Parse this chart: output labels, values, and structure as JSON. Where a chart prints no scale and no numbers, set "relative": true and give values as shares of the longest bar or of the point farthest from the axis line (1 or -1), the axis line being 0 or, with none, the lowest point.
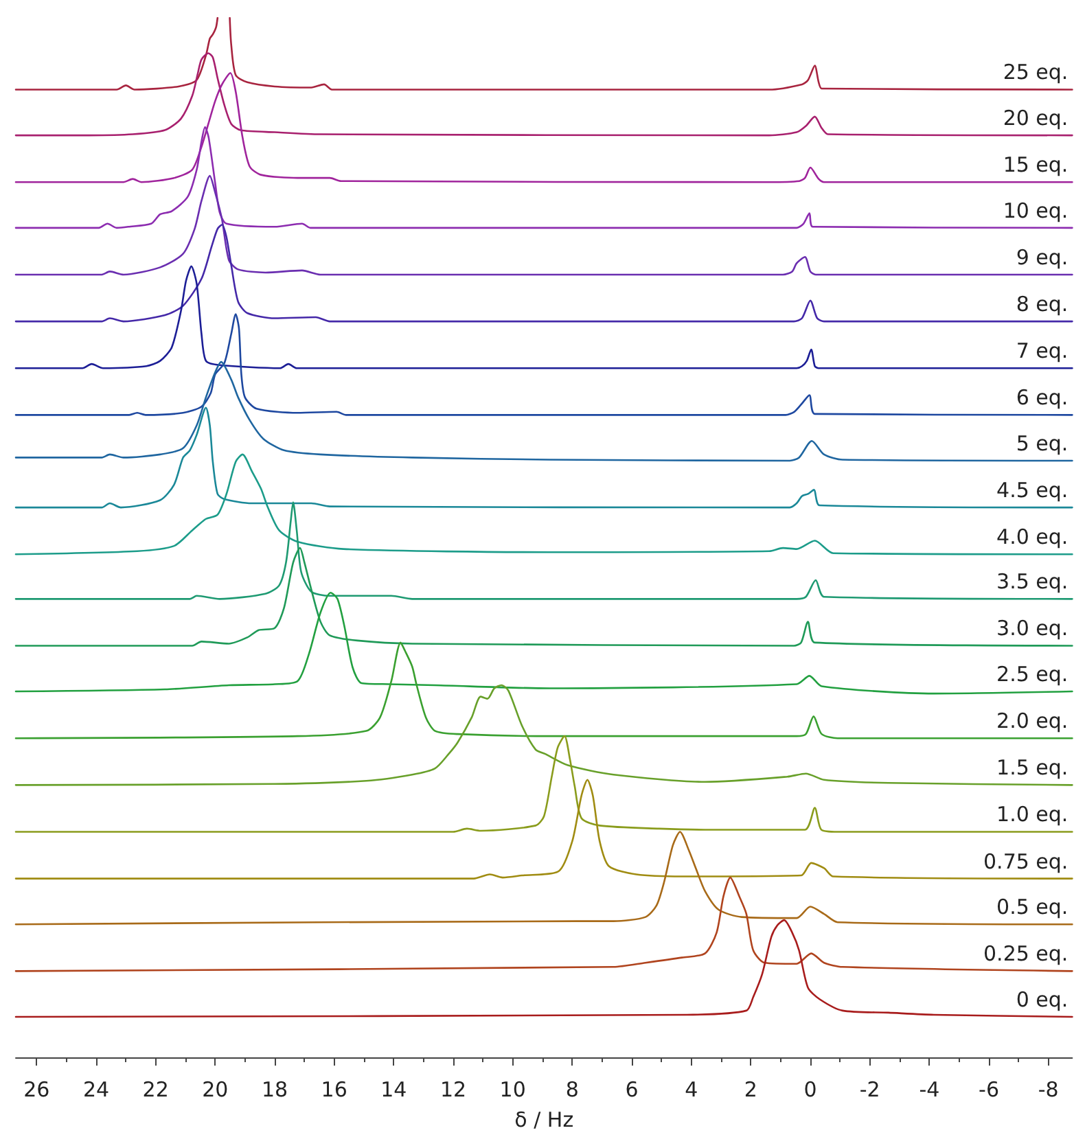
{
  "chart_data": {
    "type": "line",
    "relative": true,
    "xlabel": "δ / Hz",
    "xlim": [
      26.7,
      -8.8
    ],
    "xticks": [
      26,
      {
        "value": 25,
        "label": null
      },
      24,
      {
        "value": 23,
        "label": null
      },
      22,
      {
        "value": 21,
        "label": null
      },
      20,
      {
        "value": 19,
        "label": null
      },
      18,
      {
        "value": 17,
        "label": null
      },
      16,
      {
        "value": 15,
        "label": null
      },
      14,
      {
        "value": 13,
        "label": null
      },
      12,
      {
        "value": 11,
        "label": null
      },
      10,
      {
        "value": 9,
        "label": null
      },
      8,
      {
        "value": 7,
        "label": null
      },
      6,
      {
        "value": 5,
        "label": null
      },
      4,
      {
        "value": 3,
        "label": null
      },
      2,
      {
        "value": 1,
        "label": null
      },
      0,
      {
        "value": -1,
        "label": null
      },
      -2,
      {
        "value": -3,
        "label": null
      },
      -4,
      {
        "value": -5,
        "label": null
      },
      -6,
      {
        "value": -7,
        "label": null
      },
      -8
    ],
    "marker": "none",
    "line_style": "solid",
    "series": [
      {
        "name": "25 eq.",
        "color": "#a8243f",
        "x": [
          26.7,
          23.31,
          23.0,
          22.71,
          21.23,
          20.63,
          20.31,
          20.18,
          20.08,
          19.97,
          19.92,
          19.72,
          19.51,
          19.46,
          19.31,
          18.92,
          18.0,
          16.77,
          16.34,
          16.08,
          1.38,
          0.28,
          0.08,
          -0.15,
          -0.28,
          -0.38,
          -8.8
        ],
        "values": [
          0.931,
          0.931,
          0.935,
          0.931,
          0.934,
          0.94,
          0.964,
          0.98,
          0.984,
          0.991,
          1,
          null,
          1,
          0.974,
          0.945,
          0.938,
          0.934,
          0.933,
          0.936,
          0.931,
          0.931,
          0.936,
          0.94,
          0.954,
          0.938,
          0.932,
          0.931
        ]
      },
      {
        "name": "20 eq.",
        "color": "#a8206e",
        "x": [
          26.7,
          24.23,
          22.77,
          21.69,
          21.15,
          20.77,
          20.58,
          20.46,
          20.23,
          20.08,
          19.92,
          19.69,
          19.46,
          19.15,
          18.0,
          16.46,
          1.38,
          0.46,
          0.15,
          -0.15,
          -0.38,
          -0.59,
          -8.8
        ],
        "values": [
          0.887,
          0.887,
          0.888,
          0.892,
          0.903,
          0.925,
          0.947,
          0.96,
          0.966,
          0.962,
          0.942,
          0.916,
          0.898,
          0.892,
          0.89,
          0.888,
          0.887,
          0.89,
          0.896,
          0.905,
          0.894,
          0.888,
          0.887
        ]
      },
      {
        "name": "15 eq.",
        "color": "#a0249c",
        "x": [
          26.7,
          23.08,
          22.77,
          22.48,
          21.38,
          20.77,
          20.46,
          20.23,
          20.0,
          19.77,
          19.49,
          19.31,
          19.08,
          18.84,
          18.46,
          17.23,
          16.15,
          15.77,
          1.38,
          0.37,
          0.18,
          0.0,
          -0.28,
          -0.46,
          -8.8
        ],
        "values": [
          0.842,
          0.842,
          0.845,
          0.842,
          0.846,
          0.854,
          0.876,
          0.898,
          0.92,
          0.936,
          0.947,
          0.929,
          0.885,
          0.857,
          0.849,
          0.846,
          0.846,
          0.843,
          0.842,
          0.843,
          0.846,
          0.856,
          0.845,
          0.842,
          0.842
        ]
      },
      {
        "name": "10 eq.",
        "color": "#8c2cb0",
        "x": [
          26.7,
          23.91,
          23.62,
          23.31,
          22.92,
          22.15,
          21.85,
          21.46,
          20.92,
          20.62,
          20.46,
          20.34,
          20.22,
          20.0,
          19.85,
          19.62,
          18.0,
          17.08,
          16.8,
          0.46,
          0.23,
          0.03,
          -0.08,
          -8.8
        ],
        "values": [
          0.798,
          0.798,
          0.802,
          0.798,
          0.799,
          0.802,
          0.811,
          0.814,
          0.828,
          0.854,
          0.881,
          0.895,
          0.885,
          0.841,
          0.813,
          0.802,
          0.799,
          0.802,
          0.798,
          0.798,
          0.802,
          0.812,
          0.799,
          0.798
        ]
      },
      {
        "name": "9 eq.",
        "color": "#6a2eb0",
        "x": [
          26.7,
          23.81,
          23.54,
          23.08,
          21.85,
          21.08,
          20.69,
          20.46,
          20.18,
          20.0,
          19.77,
          19.54,
          19.23,
          18.31,
          17.08,
          16.46,
          0.92,
          0.61,
          0.46,
          0.18,
          0.0,
          -0.18,
          -8.8
        ],
        "values": [
          0.753,
          0.753,
          0.756,
          0.753,
          0.76,
          0.773,
          0.797,
          0.824,
          0.848,
          0.832,
          0.806,
          0.767,
          0.758,
          0.755,
          0.757,
          0.753,
          0.753,
          0.756,
          0.764,
          0.77,
          0.756,
          0.753,
          0.753
        ]
      },
      {
        "name": "8 eq.",
        "color": "#4428a8",
        "x": [
          26.7,
          23.81,
          23.54,
          23.08,
          21.69,
          21.08,
          20.46,
          20.12,
          19.92,
          19.77,
          19.62,
          19.46,
          19.23,
          18.92,
          18.0,
          16.62,
          16.15,
          0.55,
          0.28,
          0.0,
          -0.23,
          -0.46,
          -8.8
        ],
        "values": [
          0.708,
          0.708,
          0.711,
          0.708,
          0.714,
          0.723,
          0.749,
          0.78,
          0.797,
          0.801,
          0.789,
          0.762,
          0.727,
          0.716,
          0.711,
          0.712,
          0.708,
          0.708,
          0.711,
          0.728,
          0.711,
          0.708,
          0.708
        ]
      },
      {
        "name": "7 eq.",
        "color": "#1c1e96",
        "x": [
          26.7,
          24.46,
          24.15,
          23.77,
          22.31,
          21.85,
          21.46,
          21.15,
          20.98,
          20.8,
          20.62,
          20.46,
          20.31,
          19.85,
          17.82,
          17.54,
          17.26,
          0.46,
          0.28,
          0.12,
          -0.03,
          -0.15,
          -0.28,
          -8.8
        ],
        "values": [
          0.663,
          0.663,
          0.667,
          0.663,
          0.665,
          0.67,
          0.683,
          0.718,
          0.747,
          0.761,
          0.744,
          0.696,
          0.67,
          0.666,
          0.663,
          0.667,
          0.663,
          0.663,
          0.665,
          0.67,
          0.681,
          0.665,
          0.663,
          0.663
        ]
      },
      {
        "name": "6 eq.",
        "color": "#1e48a0",
        "x": [
          26.7,
          22.89,
          22.62,
          22.34,
          21.08,
          20.46,
          20.15,
          20.0,
          19.69,
          19.46,
          19.31,
          19.2,
          19.12,
          19.0,
          18.61,
          17.23,
          15.92,
          15.6,
          0.83,
          0.54,
          0.31,
          0.03,
          -0.15,
          -8.8
        ],
        "values": [
          0.618,
          0.618,
          0.62,
          0.618,
          0.62,
          0.626,
          0.639,
          0.657,
          0.668,
          0.696,
          0.715,
          0.701,
          0.657,
          0.635,
          0.624,
          0.62,
          0.621,
          0.618,
          0.618,
          0.621,
          0.628,
          0.637,
          0.619,
          0.618
        ]
      },
      {
        "name": "5 eq.",
        "color": "#1f66a0",
        "x": [
          26.7,
          23.81,
          23.54,
          23.08,
          21.85,
          21.08,
          20.62,
          20.31,
          20.0,
          19.8,
          19.46,
          19.23,
          18.84,
          18.38,
          17.69,
          16.46,
          13.38,
          8.77,
          0.69,
          0.38,
          -0.05,
          -0.46,
          -1.08,
          -8.8
        ],
        "values": [
          0.577,
          0.577,
          0.58,
          0.577,
          0.58,
          0.586,
          0.608,
          0.635,
          0.659,
          0.669,
          0.652,
          0.635,
          0.613,
          0.595,
          0.584,
          0.58,
          0.577,
          0.575,
          0.574,
          0.577,
          0.593,
          0.58,
          0.575,
          0.574
        ]
      },
      {
        "name": "4.5 eq.",
        "color": "#1a8898",
        "x": [
          26.7,
          23.81,
          23.54,
          23.17,
          21.85,
          21.38,
          21.08,
          20.85,
          20.62,
          20.31,
          20.18,
          20.08,
          19.92,
          19.69,
          18.77,
          16.77,
          16.15,
          0.69,
          0.46,
          0.28,
          0.08,
          -0.12,
          -0.31,
          -8.8
        ],
        "values": [
          0.529,
          0.529,
          0.533,
          0.529,
          0.536,
          0.551,
          0.577,
          0.584,
          0.599,
          0.625,
          0.608,
          0.573,
          0.542,
          0.537,
          0.533,
          0.533,
          0.53,
          0.529,
          0.533,
          0.54,
          0.542,
          0.546,
          0.531,
          0.529
        ]
      },
      {
        "name": "4.0 eq.",
        "color": "#1c9c8a",
        "x": [
          26.7,
          22.62,
          21.38,
          20.77,
          20.31,
          19.92,
          19.62,
          19.31,
          19.08,
          18.77,
          18.46,
          18.23,
          17.85,
          17.23,
          15.69,
          8.77,
          1.38,
          0.92,
          0.46,
          -0.15,
          -0.77,
          -8.8
        ],
        "values": [
          0.484,
          0.487,
          0.492,
          0.507,
          0.518,
          0.522,
          0.542,
          0.573,
          0.58,
          0.564,
          0.547,
          0.529,
          0.507,
          0.496,
          0.489,
          0.486,
          0.487,
          0.49,
          0.489,
          0.497,
          0.485,
          0.484
        ]
      },
      {
        "name": "3.5 eq.",
        "color": "#1e9a72",
        "x": [
          26.7,
          20.85,
          20.62,
          19.85,
          18.31,
          17.85,
          17.62,
          17.46,
          17.38,
          17.26,
          17.11,
          16.77,
          16.15,
          14.08,
          13.38,
          0.46,
          0.15,
          -0.18,
          -0.46,
          -8.8
        ],
        "values": [
          0.441,
          0.441,
          0.444,
          0.441,
          0.446,
          0.454,
          0.476,
          0.516,
          0.534,
          0.507,
          0.467,
          0.448,
          0.444,
          0.444,
          0.441,
          0.441,
          0.443,
          0.459,
          0.443,
          0.441
        ]
      },
      {
        "name": "3.0 eq.",
        "color": "#1f9a58",
        "x": [
          26.7,
          20.77,
          20.46,
          19.54,
          18.92,
          18.54,
          18.0,
          17.69,
          17.38,
          17.15,
          17.0,
          16.77,
          16.46,
          16.15,
          15.23,
          13.38,
          0.55,
          0.31,
          0.08,
          -0.15,
          -8.8
        ],
        "values": [
          0.396,
          0.396,
          0.4,
          0.398,
          0.404,
          0.411,
          0.413,
          0.432,
          0.476,
          0.49,
          0.476,
          0.45,
          0.419,
          0.406,
          0.401,
          0.398,
          0.396,
          0.399,
          0.419,
          0.399,
          0.396
        ]
      },
      {
        "name": "2.5 eq.",
        "color": "#22a040",
        "x": [
          26.7,
          21.69,
          19.54,
          18.0,
          17.23,
          16.85,
          16.46,
          16.12,
          15.89,
          15.66,
          15.38,
          15.08,
          14.15,
          12.61,
          8.77,
          0.46,
          0.03,
          -0.38,
          -4.15,
          -8.8
        ],
        "values": [
          0.352,
          0.354,
          0.358,
          0.359,
          0.362,
          0.388,
          0.428,
          0.447,
          0.441,
          0.415,
          0.375,
          0.36,
          0.359,
          0.358,
          0.355,
          0.359,
          0.367,
          0.357,
          0.35,
          0.352
        ]
      },
      {
        "name": "2.0 eq.",
        "color": "#3aa030",
        "x": [
          26.7,
          17.23,
          14.92,
          14.46,
          14.08,
          13.77,
          13.62,
          13.38,
          13.23,
          12.92,
          12.61,
          11.85,
          8.77,
          0.46,
          0.15,
          -0.11,
          -0.38,
          -0.92,
          -8.8
        ],
        "values": [
          0.307,
          0.309,
          0.314,
          0.327,
          0.362,
          0.399,
          0.391,
          0.376,
          0.358,
          0.327,
          0.314,
          0.311,
          0.309,
          0.309,
          0.311,
          0.328,
          0.311,
          0.307,
          0.307
        ]
      },
      {
        "name": "1.5 eq.",
        "color": "#68a02a",
        "x": [
          26.7,
          18.0,
          14.92,
          13.38,
          12.61,
          12.15,
          11.85,
          11.38,
          11.08,
          10.85,
          10.62,
          10.38,
          10.15,
          9.69,
          9.23,
          8.92,
          8.15,
          6.61,
          3.54,
          0.77,
          0.15,
          -0.46,
          -2.62,
          -8.8
        ],
        "values": [
          0.262,
          0.263,
          0.266,
          0.272,
          0.278,
          0.292,
          0.303,
          0.327,
          0.347,
          0.345,
          0.355,
          0.358,
          0.353,
          0.319,
          0.296,
          0.292,
          0.281,
          0.272,
          0.265,
          0.27,
          0.273,
          0.267,
          0.264,
          0.262
        ]
      },
      {
        "name": "1.0 eq.",
        "color": "#8a9c1c",
        "x": [
          26.7,
          12.0,
          11.54,
          11.08,
          9.23,
          8.95,
          8.69,
          8.49,
          8.26,
          8.08,
          7.92,
          7.69,
          7.08,
          5.08,
          3.54,
          0.18,
          -0.15,
          -0.37,
          -0.92,
          -8.8
        ],
        "values": [
          0.217,
          0.217,
          0.22,
          0.218,
          0.223,
          0.232,
          0.27,
          0.298,
          0.309,
          0.287,
          0.261,
          0.23,
          0.223,
          0.22,
          0.219,
          0.219,
          0.24,
          0.219,
          0.217,
          0.217
        ]
      },
      {
        "name": "0.75 eq.",
        "color": "#a08c12",
        "x": [
          26.7,
          11.31,
          10.77,
          10.34,
          9.69,
          8.46,
          8.0,
          7.69,
          7.49,
          7.31,
          7.08,
          6.77,
          5.85,
          4.31,
          0.31,
          -0.03,
          -0.46,
          -0.77,
          -8.8
        ],
        "values": [
          0.172,
          0.172,
          0.176,
          0.173,
          0.175,
          0.179,
          0.208,
          0.252,
          0.267,
          0.252,
          0.208,
          0.184,
          0.176,
          0.174,
          0.175,
          0.187,
          0.182,
          0.174,
          0.172
        ]
      },
      {
        "name": "0.5 eq.",
        "color": "#a86a18",
        "x": [
          26.7,
          7.85,
          6.61,
          5.54,
          5.17,
          4.92,
          4.62,
          4.38,
          4.08,
          3.85,
          3.54,
          3.08,
          2.31,
          0.46,
          0.0,
          -0.46,
          -0.92,
          -8.8
        ],
        "values": [
          0.128,
          0.131,
          0.131,
          0.135,
          0.146,
          0.168,
          0.204,
          0.217,
          0.199,
          0.182,
          0.16,
          0.142,
          0.135,
          0.134,
          0.145,
          0.138,
          0.13,
          0.128
        ]
      },
      {
        "name": "0.25 eq.",
        "color": "#b0441e",
        "x": [
          26.7,
          6.61,
          5.54,
          4.31,
          3.54,
          3.15,
          2.92,
          2.69,
          2.39,
          2.15,
          1.92,
          1.54,
          0.46,
          -0.03,
          -0.46,
          -1.08,
          -8.8
        ],
        "values": [
          0.083,
          0.087,
          0.091,
          0.096,
          0.1,
          0.12,
          0.155,
          0.173,
          0.155,
          0.138,
          0.103,
          0.091,
          0.09,
          0.1,
          0.091,
          0.087,
          0.083
        ]
      },
      {
        "name": "0 eq.",
        "color": "#a81c1c",
        "x": [
          26.7,
          4.15,
          2.15,
          1.92,
          1.62,
          1.31,
          1.11,
          0.88,
          0.61,
          0.38,
          0.08,
          -0.31,
          -1.08,
          -2.62,
          -4.15,
          -8.8
        ],
        "values": [
          0.039,
          0.041,
          0.045,
          0.058,
          0.08,
          0.116,
          0.127,
          0.132,
          0.12,
          0.103,
          0.067,
          0.056,
          0.045,
          0.043,
          0.041,
          0.039
        ]
      }
    ]
  }
}
